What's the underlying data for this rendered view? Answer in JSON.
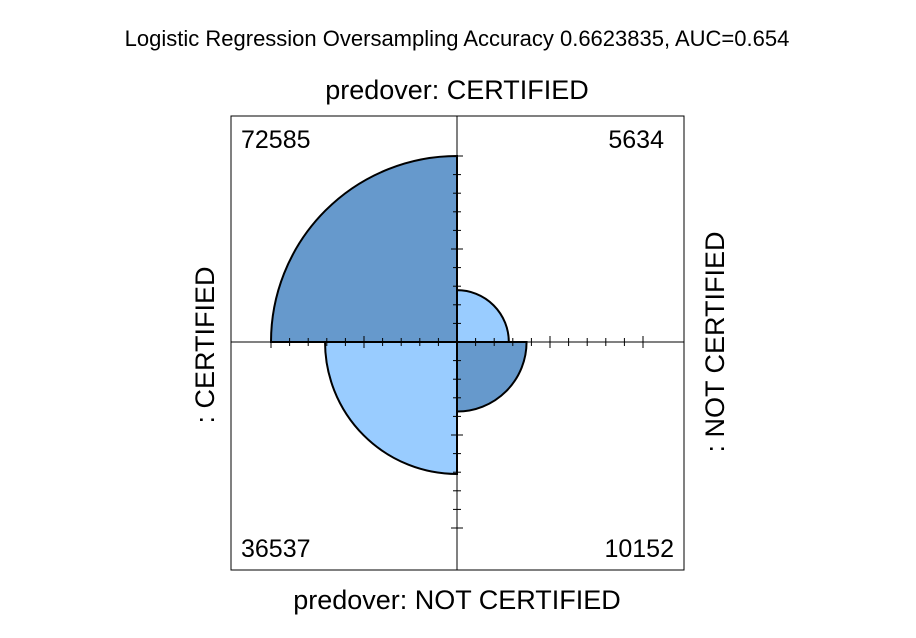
{
  "chart_data": {
    "type": "fourfold",
    "title": "Logistic Regression Oversampling Accuracy 0.6623835, AUC=0.654",
    "top_label": "predover: CERTIFIED",
    "bottom_label": "predover: NOT CERTIFIED",
    "left_label": ": CERTIFIED",
    "right_label": ": NOT CERTIFIED",
    "cells": [
      {
        "position": "top-left",
        "value": 72585,
        "label": "72585",
        "color": "#6699CC"
      },
      {
        "position": "top-right",
        "value": 5634,
        "label": "5634",
        "color": "#99CCFF"
      },
      {
        "position": "bottom-left",
        "value": 36537,
        "label": "36537",
        "color": "#99CCFF"
      },
      {
        "position": "bottom-right",
        "value": 10152,
        "label": "10152",
        "color": "#6699CC"
      }
    ],
    "grid": false
  }
}
